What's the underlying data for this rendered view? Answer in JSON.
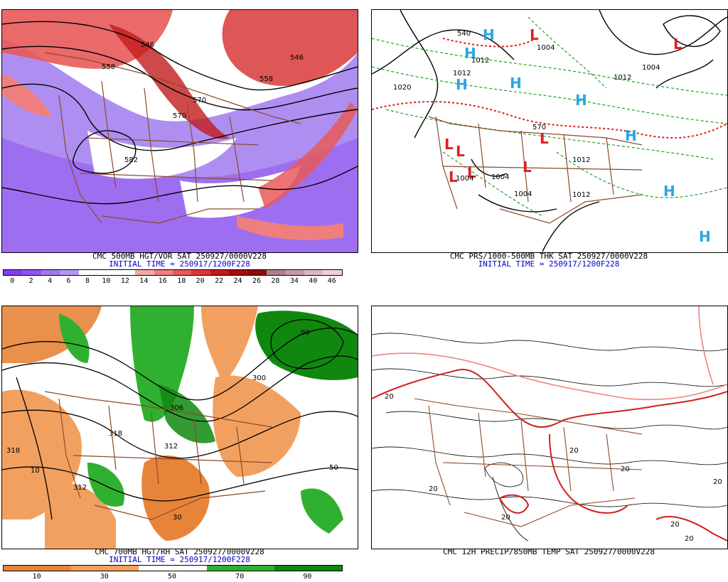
{
  "panels": {
    "p500": {
      "caption_line1": "CMC 500MB HGT/VOR SAT 250927/0000V228",
      "caption_line2": "INITIAL TIME = 250917/1200F228",
      "colorbar_ticks": [
        "0",
        "2",
        "4",
        "6",
        "8",
        "10",
        "12",
        "14",
        "16",
        "18",
        "20",
        "22",
        "24",
        "26",
        "28",
        "34",
        "40",
        "46"
      ],
      "colorbar_colors": [
        "#7f3fef",
        "#8f55ef",
        "#a07bef",
        "#b39aef",
        "#ffffff",
        "#ffffff",
        "#ffffff",
        "#f7a7a7",
        "#ef7f7f",
        "#e85a5a",
        "#d83838",
        "#c21b1b",
        "#a60e0e",
        "#8c0b0b",
        "#b07f8f",
        "#c89aa8",
        "#e0b8c4",
        "#f5d0d8"
      ],
      "contour_labels": [
        "546",
        "558",
        "570",
        "582",
        "558",
        "546",
        "570"
      ]
    },
    "prs": {
      "caption_line1": "CMC PRS/1000-500MB THK SAT 250927/0000V228",
      "caption_line2": "INITIAL TIME = 250917/1200F228",
      "high_symbol": "H",
      "low_symbol": "L",
      "isobar_labels": [
        "1012",
        "1004",
        "1020",
        "1012",
        "1012",
        "1004",
        "1004",
        "1012",
        "1004",
        "1012",
        "1004",
        "540",
        "570"
      ],
      "colors": {
        "high": "#2aa6e0",
        "low": "#e02020",
        "thickness": "#22a022",
        "thickness_540": "#e02020"
      }
    },
    "p700": {
      "caption_line1": "CMC 700MB HGT/RH SAT 250927/0000V228",
      "caption_line2": "INITIAL TIME = 250917/1200F228",
      "colorbar_ticks": [
        "10",
        "30",
        "50",
        "70",
        "90"
      ],
      "colorbar_colors": [
        "#e8843a",
        "#f2a060",
        "#ffffff",
        "#30b030",
        "#108810"
      ],
      "contour_labels": [
        "318",
        "312",
        "306",
        "300",
        "312",
        "318",
        "50",
        "10",
        "30",
        "90"
      ]
    },
    "precip": {
      "caption_line1": "CMC 12H PRECIP/850MB TEMP SAT 250927/0000V228",
      "isotherm_labels": [
        "20",
        "20",
        "20",
        "20",
        "20",
        "20",
        "20",
        "20"
      ]
    }
  }
}
